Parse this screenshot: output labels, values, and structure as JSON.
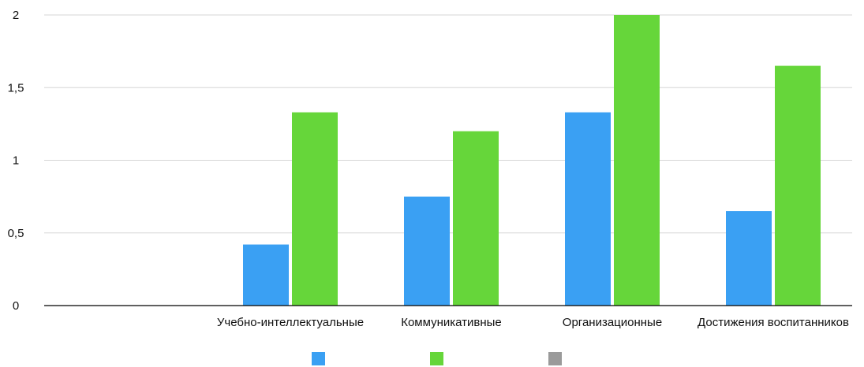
{
  "chart_data": {
    "type": "bar",
    "categories": [
      "",
      "Учебно-интеллектуальные",
      "Коммуникативные",
      "Организационные",
      "Достижения воспитанников"
    ],
    "series": [
      {
        "color": "#3aa0f3",
        "values": [
          0,
          0.42,
          0.75,
          1.33,
          0.65
        ]
      },
      {
        "color": "#66d63a",
        "values": [
          0,
          1.33,
          1.2,
          2.0,
          1.65
        ]
      },
      {
        "color": "#9a9a9a",
        "values": [
          0,
          0,
          0,
          0,
          0
        ]
      }
    ],
    "ylim": [
      0,
      2
    ],
    "yticks": [
      "0",
      "0,5",
      "1",
      "1,5",
      "2"
    ],
    "ytick_values": [
      0,
      0.5,
      1,
      1.5,
      2
    ],
    "grid": true,
    "legend": "bottom-center"
  }
}
